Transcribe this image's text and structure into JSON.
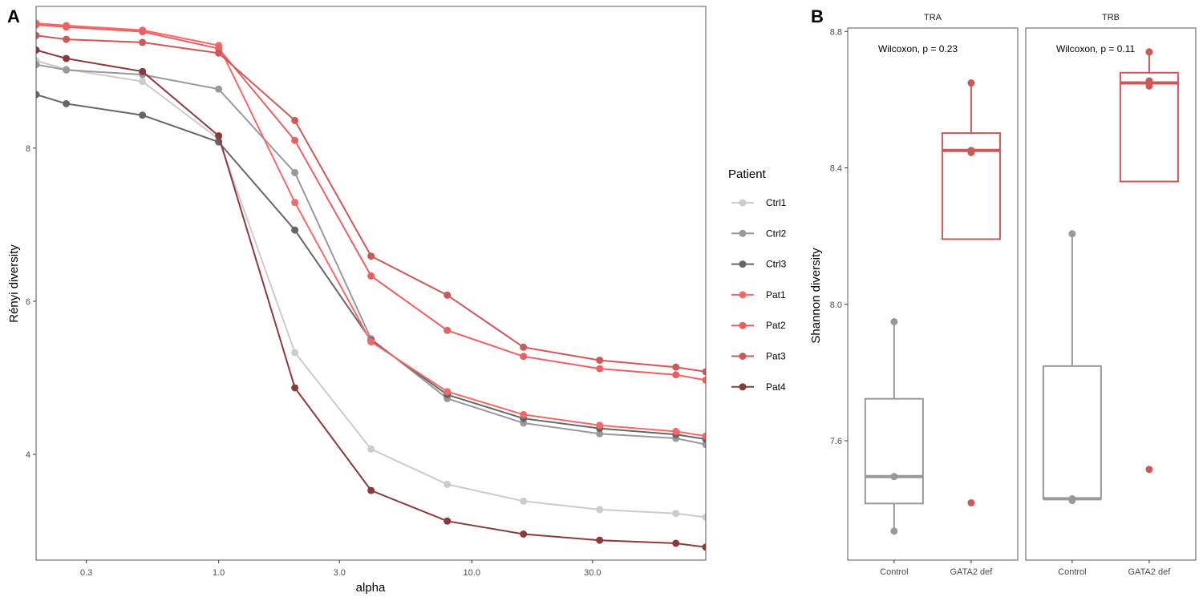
{
  "chart_data": [
    {
      "panel": "A",
      "type": "line",
      "xlabel": "alpha",
      "ylabel": "Rényi diversity",
      "xscale": "log10",
      "xlim": [
        0.19,
        84
      ],
      "ylim": [
        2.62,
        9.85
      ],
      "x_ticks": [
        0.3,
        1.0,
        3.0,
        10.0,
        30.0
      ],
      "x_tick_labels": [
        "0.3",
        "1.0",
        "3.0",
        "10.0",
        "30.0"
      ],
      "y_ticks": [
        4,
        6,
        8
      ],
      "y_tick_labels": [
        "4",
        "6",
        "8"
      ],
      "grid": false,
      "x": [
        0.19,
        0.25,
        0.5,
        1,
        2,
        4,
        8,
        16,
        32,
        64,
        84
      ],
      "series": [
        {
          "name": "Ctrl1",
          "color": "#cccccc",
          "values": [
            9.14,
            9.03,
            8.87,
            8.12,
            5.33,
            4.07,
            3.61,
            3.39,
            3.28,
            3.23,
            3.18
          ]
        },
        {
          "name": "Ctrl2",
          "color": "#999999",
          "values": [
            9.09,
            9.02,
            8.96,
            8.77,
            7.68,
            5.51,
            4.73,
            4.41,
            4.27,
            4.21,
            4.13
          ]
        },
        {
          "name": "Ctrl3",
          "color": "#666666",
          "values": [
            8.7,
            8.58,
            8.43,
            8.08,
            6.93,
            5.49,
            4.78,
            4.47,
            4.34,
            4.26,
            4.2
          ]
        },
        {
          "name": "Pat1",
          "color": "#f86868",
          "values": [
            9.63,
            9.6,
            9.54,
            9.34,
            7.29,
            5.47,
            4.82,
            4.52,
            4.38,
            4.3,
            4.24
          ]
        },
        {
          "name": "Pat2",
          "color": "#ec6060",
          "values": [
            9.61,
            9.58,
            9.52,
            9.3,
            8.1,
            6.33,
            5.62,
            5.28,
            5.12,
            5.04,
            4.97
          ]
        },
        {
          "name": "Pat3",
          "color": "#cd5858",
          "values": [
            9.47,
            9.42,
            9.38,
            9.24,
            8.36,
            6.59,
            6.08,
            5.4,
            5.23,
            5.14,
            5.08
          ]
        },
        {
          "name": "Pat4",
          "color": "#8b3a3a",
          "values": [
            9.28,
            9.17,
            9.0,
            8.16,
            4.87,
            3.53,
            3.13,
            2.96,
            2.88,
            2.84,
            2.79
          ]
        }
      ],
      "legend": {
        "title": "Patient",
        "position": "right",
        "entries": [
          "Ctrl1",
          "Ctrl2",
          "Ctrl3",
          "Pat1",
          "Pat2",
          "Pat3",
          "Pat4"
        ]
      }
    },
    {
      "panel": "B",
      "type": "box",
      "ylabel": "Shannon diversity",
      "ylim": [
        7.25,
        8.81
      ],
      "y_ticks": [
        7.6,
        8.0,
        8.4,
        8.8
      ],
      "y_tick_labels": [
        "7.6",
        "8.0",
        "8.4",
        "8.8"
      ],
      "categories": [
        "Control",
        "GATA2 def"
      ],
      "category_colors": {
        "Control": "#999999",
        "GATA2 def": "#cd5858"
      },
      "facets": [
        {
          "name": "TRA",
          "annotation": "Wilcoxon, p = 0.23",
          "boxes": [
            {
              "category": "Control",
              "lower_whisker": 7.335,
              "q1": 7.416,
              "median": 7.495,
              "q3": 7.723,
              "upper_whisker": 7.949,
              "points": [
                7.949,
                7.495,
                7.335
              ],
              "outliers": []
            },
            {
              "category": "GATA2 def",
              "lower_whisker": 8.191,
              "q1": 8.191,
              "median": 8.451,
              "q3": 8.502,
              "upper_whisker": 8.649,
              "points": [
                8.649,
                8.451,
                8.445
              ],
              "outliers": [
                7.418
              ]
            }
          ]
        },
        {
          "name": "TRB",
          "annotation": "Wilcoxon, p = 0.11",
          "boxes": [
            {
              "category": "Control",
              "lower_whisker": 7.43,
              "q1": 7.43,
              "median": 7.43,
              "q3": 7.819,
              "upper_whisker": 8.207,
              "points": [
                8.207,
                7.43,
                7.425
              ],
              "outliers": []
            },
            {
              "category": "GATA2 def",
              "lower_whisker": 8.36,
              "q1": 8.36,
              "median": 8.649,
              "q3": 8.679,
              "upper_whisker": 8.74,
              "points": [
                8.74,
                8.655,
                8.64
              ],
              "outliers": [
                7.516
              ]
            }
          ]
        }
      ]
    }
  ],
  "labels": {
    "panel_a_tag": "A",
    "panel_b_tag": "B",
    "panel_a_xlabel": "alpha",
    "panel_a_ylabel": "Rényi diversity",
    "panel_b_ylabel": "Shannon diversity",
    "legend_title": "Patient"
  }
}
